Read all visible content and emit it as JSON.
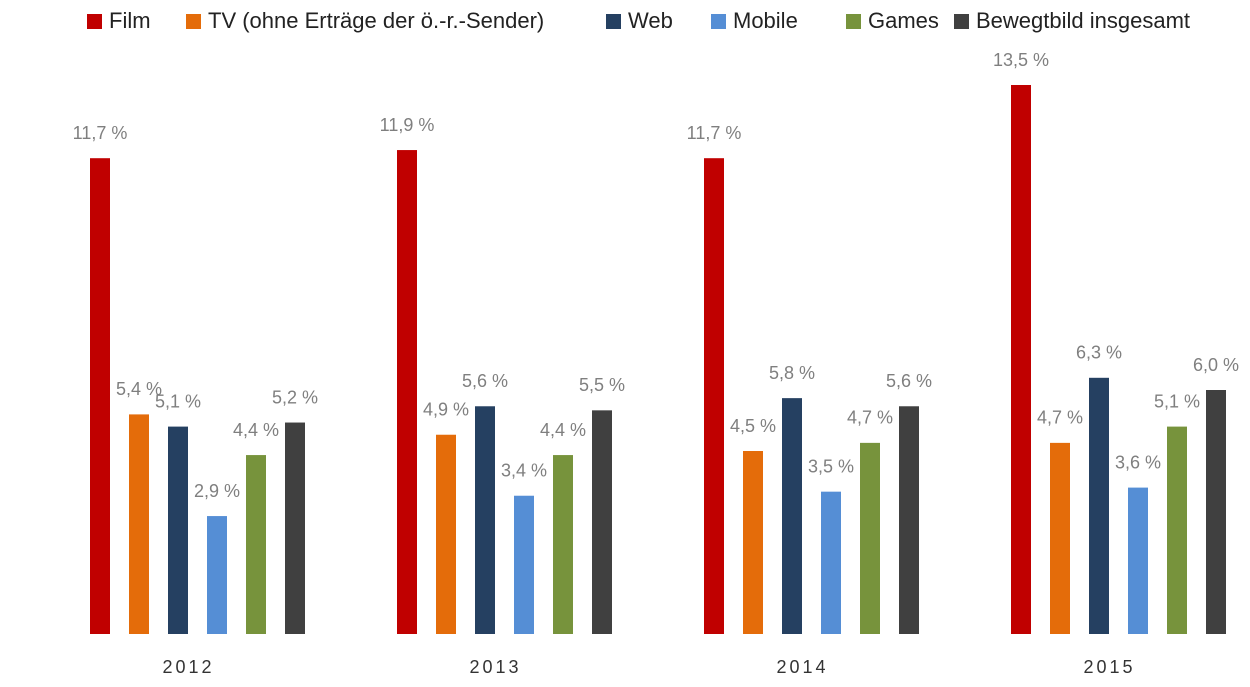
{
  "chart_data": {
    "type": "bar",
    "categories": [
      "2012",
      "2013",
      "2014",
      "2015"
    ],
    "series": [
      {
        "name": "Film",
        "color": "#c00000",
        "values": [
          11.7,
          11.9,
          11.7,
          13.5
        ],
        "value_labels": [
          "11,7 %",
          "11,9 %",
          "11,7 %",
          "13,5 %"
        ]
      },
      {
        "name": "TV (ohne Erträge der ö.-r.-Sender)",
        "color": "#e46c0a",
        "values": [
          5.4,
          4.9,
          4.5,
          4.7
        ],
        "value_labels": [
          "5,4 %",
          "4,9 %",
          "4,5 %",
          "4,7 %"
        ]
      },
      {
        "name": "Web",
        "color": "#254061",
        "values": [
          5.1,
          5.6,
          5.8,
          6.3
        ],
        "value_labels": [
          "5,1 %",
          "5,6 %",
          "5,8 %",
          "6,3 %"
        ]
      },
      {
        "name": "Mobile",
        "color": "#558ed5",
        "values": [
          2.9,
          3.4,
          3.5,
          3.6
        ],
        "value_labels": [
          "2,9 %",
          "3,4 %",
          "3,5 %",
          "3,6 %"
        ]
      },
      {
        "name": "Games",
        "color": "#77933c",
        "values": [
          4.4,
          4.4,
          4.7,
          5.1
        ],
        "value_labels": [
          "4,4 %",
          "4,4 %",
          "4,7 %",
          "5,1 %"
        ]
      },
      {
        "name": "Bewegtbild insgesamt",
        "color": "#404040",
        "values": [
          5.2,
          5.5,
          5.6,
          6.0
        ],
        "value_labels": [
          "5,2 %",
          "5,5 %",
          "5,6 %",
          "6,0 %"
        ]
      }
    ],
    "legend": "top"
  }
}
